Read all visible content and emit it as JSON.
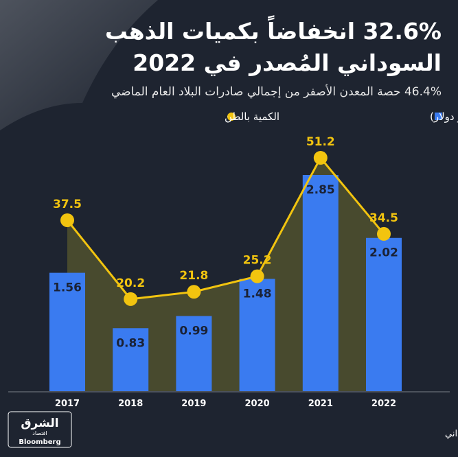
{
  "chart_data": {
    "type": "bar",
    "title": [
      "32.6% انخفاضاً بكميات الذهب",
      "السوداني المُصدر في 2022"
    ],
    "subtitle": "46.4% حصة المعدن الأصفر من إجمالي صادرات البلاد العام الماضي",
    "categories": [
      "2017",
      "2018",
      "2019",
      "2020",
      "2021",
      "2022"
    ],
    "series": [
      {
        "name": "صادرات الذهب السوداني (مليار دولار)",
        "color": "#3a7bf0",
        "values": [
          1.56,
          0.83,
          0.99,
          1.48,
          2.85,
          2.02
        ]
      },
      {
        "name": "الكمية بالطن",
        "type": "line",
        "axis": "y2",
        "color": "#f2c40f",
        "values": [
          37.5,
          20.2,
          21.8,
          25.2,
          51.2,
          34.5
        ]
      }
    ]
  },
  "source": "المصدر: البنك المركزي السوداني",
  "logo": {
    "brand": "الشرق",
    "sub": "اقتصاد",
    "partner": "Bloomberg"
  }
}
